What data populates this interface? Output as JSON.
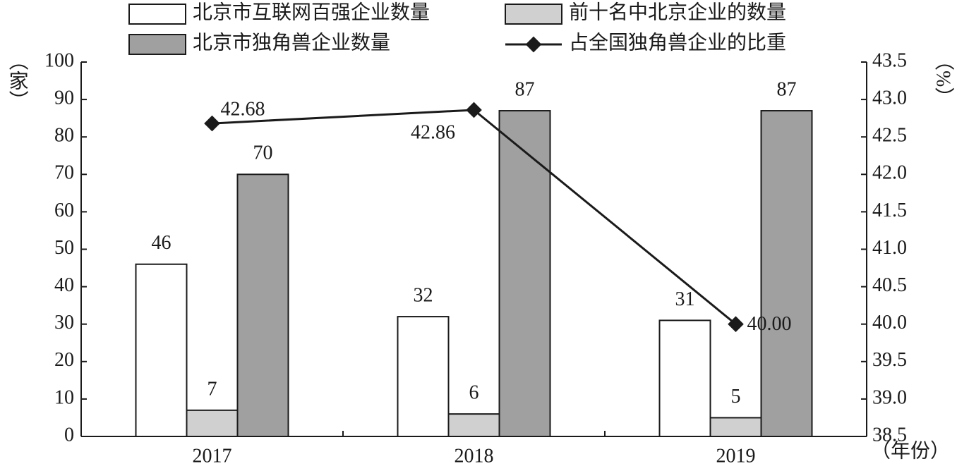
{
  "chart_data": {
    "type": "bar",
    "categories": [
      "2017",
      "2018",
      "2019"
    ],
    "series": [
      {
        "name": "北京市互联网百强企业数量",
        "color": "#ffffff",
        "values": [
          46,
          32,
          31
        ]
      },
      {
        "name": "前十名中北京企业的数量",
        "color": "#d0d0d0",
        "values": [
          7,
          6,
          5
        ]
      },
      {
        "name": "北京市独角兽企业数量",
        "color": "#a0a0a0",
        "values": [
          70,
          87,
          87
        ]
      },
      {
        "name": "占全国独角兽企业的比重",
        "type": "line",
        "axis": "y2",
        "color": "#1a1a1a",
        "values": [
          42.68,
          42.86,
          40.0
        ],
        "value_labels": [
          "42.68",
          "42.86",
          "40.00"
        ]
      }
    ],
    "y_label": "（家）",
    "y2_label": "（%）",
    "x_label": "（年份）",
    "ylim": [
      0,
      100
    ],
    "yticks": [
      0,
      10,
      20,
      30,
      40,
      50,
      60,
      70,
      80,
      90,
      100
    ],
    "y2lim": [
      38.5,
      43.5
    ],
    "y2ticks": [
      38.5,
      {
        "value": 39,
        "label": "39.0"
      },
      39.5,
      {
        "value": 40,
        "label": "40.0"
      },
      40.5,
      {
        "value": 41,
        "label": "41.0"
      },
      41.5,
      {
        "value": 42,
        "label": "42.0"
      },
      42.5,
      {
        "value": 43,
        "label": "43.0"
      },
      43.5
    ],
    "grid": false
  }
}
